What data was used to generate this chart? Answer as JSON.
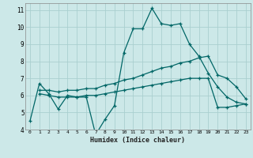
{
  "xlabel": "Humidex (Indice chaleur)",
  "bg_color": "#cce8e8",
  "grid_color": "#aacfcf",
  "line_color": "#006666",
  "xlim": [
    -0.5,
    23.5
  ],
  "ylim": [
    4,
    11.4
  ],
  "xticks": [
    0,
    1,
    2,
    3,
    4,
    5,
    6,
    7,
    8,
    9,
    10,
    11,
    12,
    13,
    14,
    15,
    16,
    17,
    18,
    19,
    20,
    21,
    22,
    23
  ],
  "yticks": [
    4,
    5,
    6,
    7,
    8,
    9,
    10,
    11
  ],
  "line1_x": [
    0,
    1,
    2,
    3,
    4,
    5,
    6,
    7,
    8,
    9,
    10,
    11,
    12,
    13,
    14,
    15,
    16,
    17,
    18,
    19,
    20,
    21,
    22,
    23
  ],
  "line1_y": [
    4.5,
    6.7,
    6.1,
    5.2,
    6.0,
    5.9,
    5.9,
    3.7,
    4.6,
    5.4,
    8.5,
    9.9,
    9.9,
    11.1,
    10.2,
    10.1,
    10.2,
    9.0,
    8.3,
    7.3,
    6.5,
    5.9,
    5.6,
    5.5
  ],
  "line2_x": [
    1,
    2,
    3,
    4,
    5,
    6,
    7,
    8,
    9,
    10,
    11,
    12,
    13,
    14,
    15,
    16,
    17,
    18,
    19,
    20,
    21,
    22,
    23
  ],
  "line2_y": [
    6.3,
    6.3,
    6.2,
    6.3,
    6.3,
    6.4,
    6.4,
    6.6,
    6.7,
    6.9,
    7.0,
    7.2,
    7.4,
    7.6,
    7.7,
    7.9,
    8.0,
    8.2,
    8.3,
    7.2,
    7.0,
    6.5,
    5.8
  ],
  "line3_x": [
    1,
    2,
    3,
    4,
    5,
    6,
    7,
    8,
    9,
    10,
    11,
    12,
    13,
    14,
    15,
    16,
    17,
    18,
    19,
    20,
    21,
    22,
    23
  ],
  "line3_y": [
    6.1,
    6.0,
    5.9,
    5.9,
    5.9,
    6.0,
    6.0,
    6.1,
    6.2,
    6.3,
    6.4,
    6.5,
    6.6,
    6.7,
    6.8,
    6.9,
    7.0,
    7.0,
    7.0,
    5.3,
    5.3,
    5.4,
    5.5
  ]
}
